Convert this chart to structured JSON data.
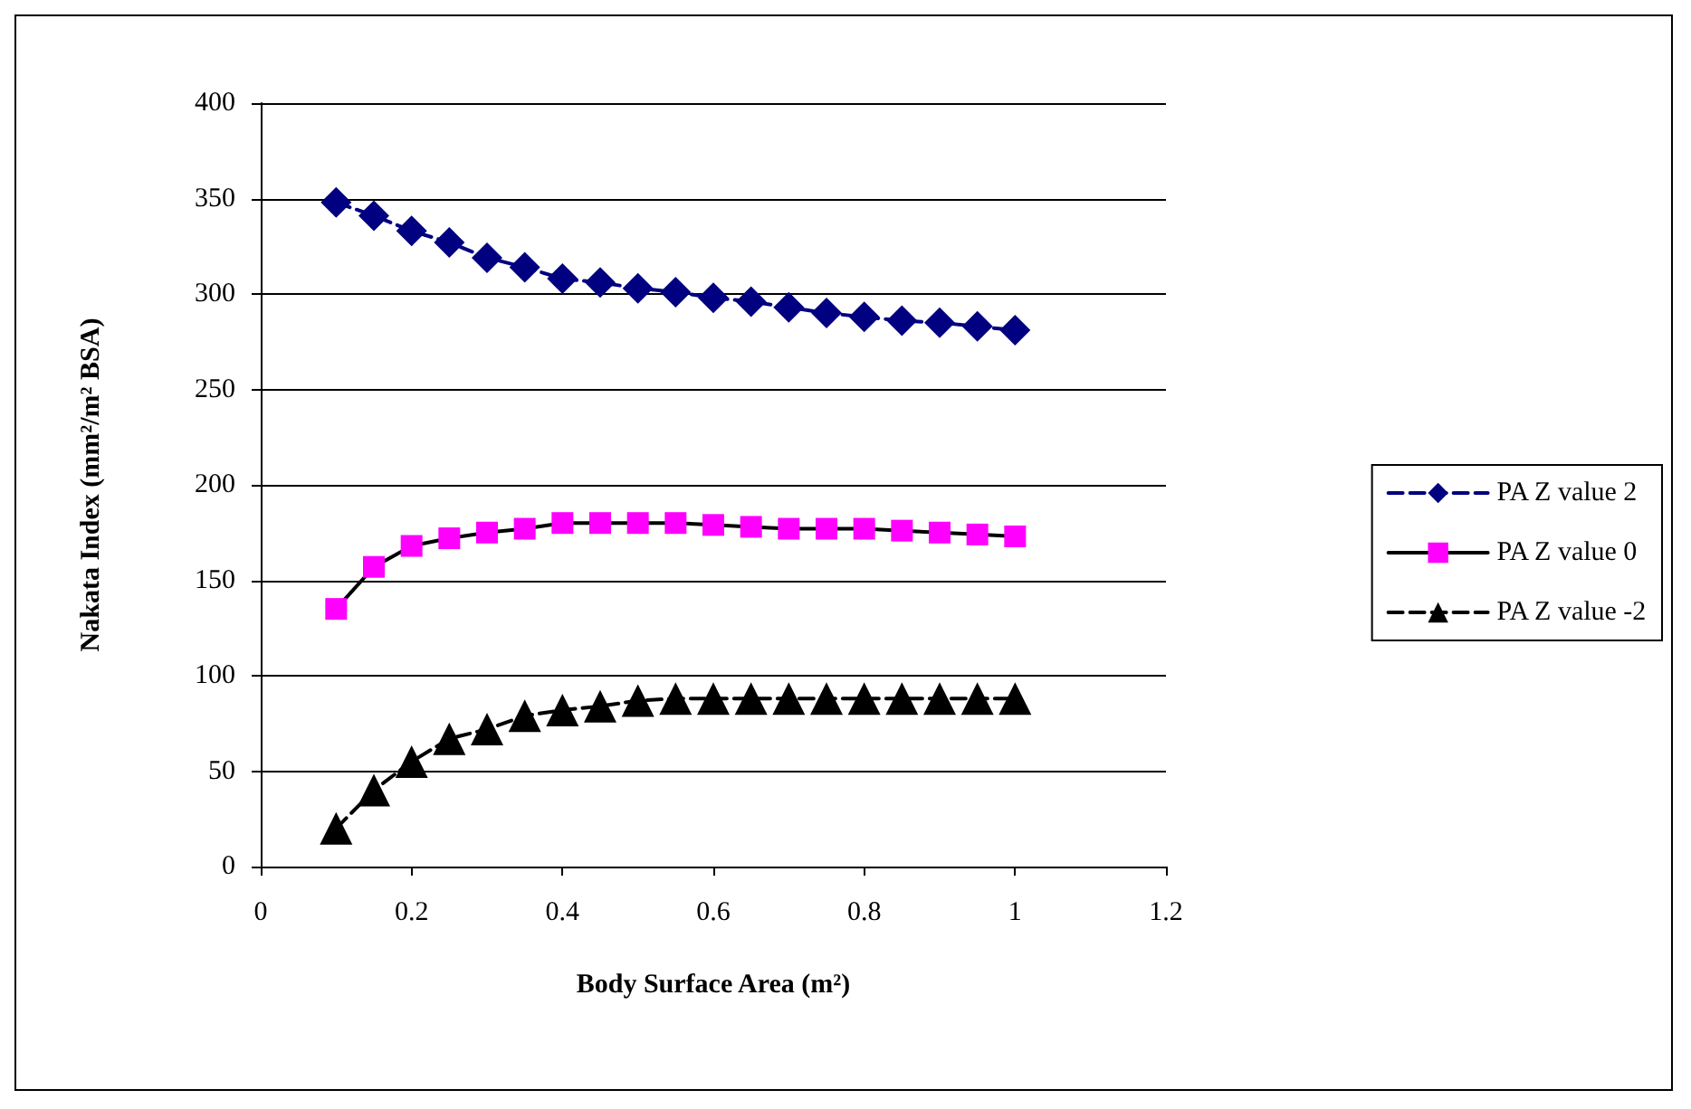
{
  "chart_data": {
    "type": "line",
    "xlabel": "Body Surface Area (m²)",
    "ylabel": "Nakata Index (mm²/m² BSA)",
    "x": [
      0.1,
      0.15,
      0.2,
      0.25,
      0.3,
      0.35,
      0.4,
      0.45,
      0.5,
      0.55,
      0.6,
      0.65,
      0.7,
      0.75,
      0.8,
      0.85,
      0.9,
      0.95,
      1.0
    ],
    "series": [
      {
        "name": "PA Z value 2",
        "color": "#000080",
        "marker": "diamond",
        "line_style": "dashed",
        "values": [
          348,
          341,
          333,
          327,
          319,
          314,
          308,
          306,
          303,
          301,
          298,
          296,
          293,
          290,
          288,
          286,
          285,
          283,
          281
        ]
      },
      {
        "name": "PA Z value 0",
        "color": "#ff00ff",
        "marker": "square",
        "line_style": "solid",
        "values": [
          135,
          157,
          168,
          172,
          175,
          177,
          180,
          180,
          180,
          180,
          179,
          178,
          177,
          177,
          177,
          176,
          175,
          174,
          173
        ]
      },
      {
        "name": "PA Z value -2",
        "color": "#000000",
        "marker": "triangle",
        "line_style": "dashed",
        "values": [
          20,
          40,
          55,
          67,
          72,
          79,
          82,
          84,
          87,
          88,
          88,
          88,
          88,
          88,
          88,
          88,
          88,
          88,
          88
        ]
      }
    ],
    "xlim": [
      0,
      1.2
    ],
    "xticks": [
      0,
      0.2,
      0.4,
      0.6,
      0.8,
      1,
      1.2
    ],
    "ylim": [
      0,
      400
    ],
    "yticks": [
      0,
      50,
      100,
      150,
      200,
      250,
      300,
      350,
      400
    ],
    "grid": "y",
    "legend": "right"
  }
}
